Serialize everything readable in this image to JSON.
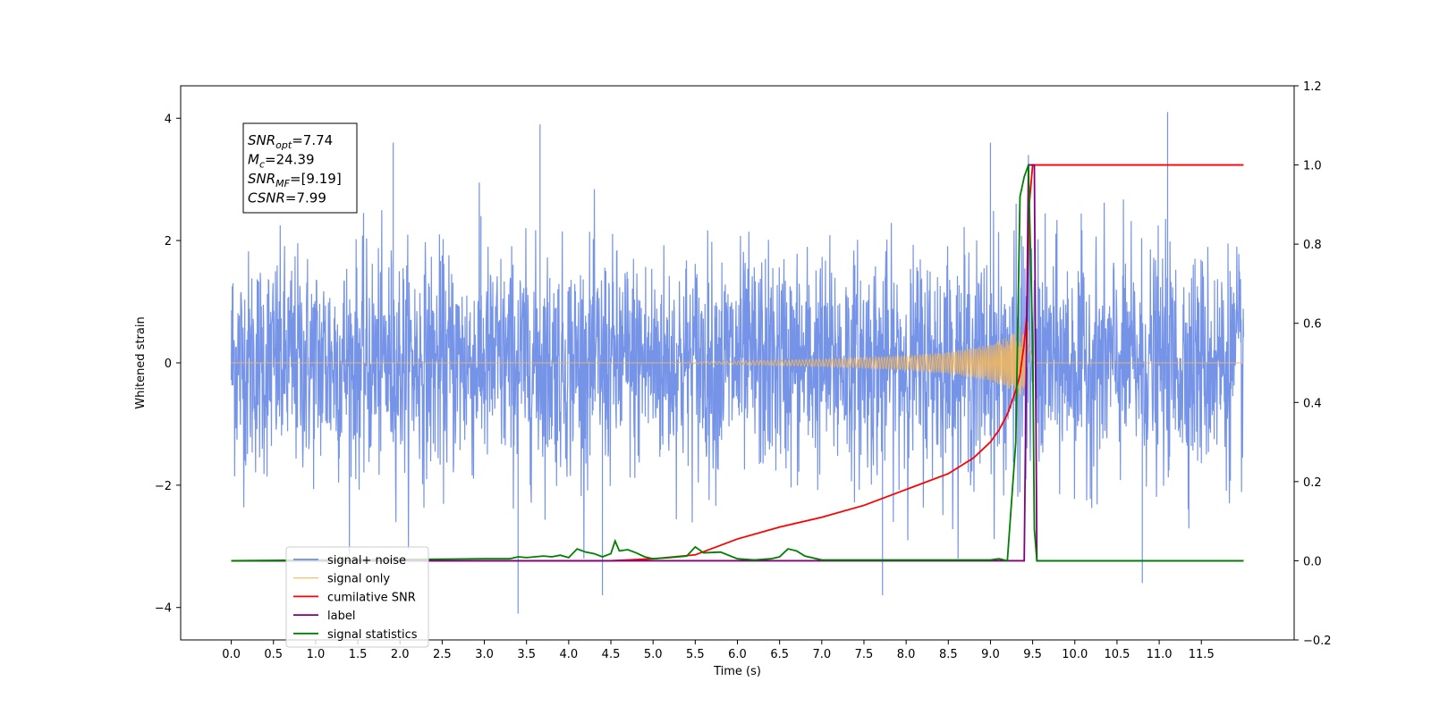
{
  "chart_data": {
    "type": "line",
    "xlabel": "Time (s)",
    "ylabel": "Whitened strain",
    "xlim": [
      -0.6,
      12.6
    ],
    "ylim": [
      -4.53,
      4.53
    ],
    "y2lim": [
      -0.2,
      1.2
    ],
    "x_ticks": [
      "0.0",
      "0.5",
      "1.0",
      "1.5",
      "2.0",
      "2.5",
      "3.0",
      "3.5",
      "4.0",
      "4.5",
      "5.0",
      "5.5",
      "6.0",
      "6.5",
      "7.0",
      "7.5",
      "8.0",
      "8.5",
      "9.0",
      "9.5",
      "10.0",
      "10.5",
      "11.0",
      "11.5"
    ],
    "y_ticks": [
      "−4",
      "−2",
      "0",
      "2",
      "4"
    ],
    "y2_ticks": [
      "−0.2",
      "0.0",
      "0.2",
      "0.4",
      "0.6",
      "0.8",
      "1.0",
      "1.2"
    ],
    "legend_position": "lower left",
    "colors": {
      "noise": "#6f8ee6",
      "signal": "#f5b75a",
      "snr": "#ff0000",
      "label": "#800080",
      "stats": "#008000"
    },
    "annotation": [
      {
        "name": "SNR",
        "sub": "opt",
        "value": "=7.74"
      },
      {
        "name": "M",
        "sub": "c",
        "value": "=24.39"
      },
      {
        "name": "SNR",
        "sub": "MF",
        "value": "=[9.19]"
      },
      {
        "name": "CSNR",
        "sub": "",
        "value": "=7.99"
      }
    ],
    "series": [
      {
        "name": "signal+ noise",
        "axis": "left",
        "style": "noise",
        "x_range": [
          0.0,
          12.0
        ],
        "typical_amplitude": [
          -2.3,
          2.3
        ],
        "notable_peaks": [
          [
            0.02,
            1.3
          ],
          [
            1.92,
            3.6
          ],
          [
            2.96,
            2.4
          ],
          [
            3.66,
            3.9
          ],
          [
            3.4,
            -4.1
          ],
          [
            11.1,
            4.1
          ],
          [
            10.8,
            -3.6
          ],
          [
            7.72,
            -3.8
          ],
          [
            4.4,
            -3.8
          ],
          [
            9.0,
            3.6
          ],
          [
            9.45,
            3.4
          ]
        ]
      },
      {
        "name": "signal only",
        "axis": "left",
        "style": "chirp",
        "merger_time": 9.45,
        "envelope": [
          [
            5.0,
            0.0
          ],
          [
            6.0,
            0.03
          ],
          [
            7.0,
            0.06
          ],
          [
            8.0,
            0.12
          ],
          [
            8.5,
            0.18
          ],
          [
            9.0,
            0.3
          ],
          [
            9.2,
            0.42
          ],
          [
            9.35,
            0.6
          ],
          [
            9.45,
            0.8
          ],
          [
            9.5,
            0.0
          ]
        ]
      },
      {
        "name": "cumilative SNR",
        "axis": "right",
        "x": [
          0.0,
          4.0,
          4.5,
          5.0,
          5.5,
          6.0,
          6.5,
          7.0,
          7.5,
          8.0,
          8.5,
          8.8,
          9.0,
          9.1,
          9.2,
          9.3,
          9.35,
          9.4,
          9.43,
          9.46,
          9.5,
          9.55,
          12.0
        ],
        "values": [
          0.0,
          0.0,
          0.0,
          0.005,
          0.015,
          0.055,
          0.085,
          0.11,
          0.14,
          0.18,
          0.22,
          0.26,
          0.3,
          0.33,
          0.37,
          0.43,
          0.47,
          0.55,
          0.62,
          0.9,
          1.0,
          1.0,
          1.0
        ]
      },
      {
        "name": "label",
        "axis": "right",
        "x": [
          0.0,
          9.4,
          9.45,
          9.52,
          9.55,
          12.0
        ],
        "values": [
          0.0,
          0.0,
          1.0,
          1.0,
          0.0,
          0.0
        ]
      },
      {
        "name": "signal statistics",
        "axis": "right",
        "x": [
          0.0,
          3.0,
          3.3,
          3.4,
          3.5,
          3.7,
          3.8,
          3.9,
          4.0,
          4.1,
          4.2,
          4.3,
          4.4,
          4.5,
          4.55,
          4.6,
          4.7,
          4.8,
          4.9,
          5.0,
          5.2,
          5.4,
          5.5,
          5.6,
          5.8,
          6.0,
          6.2,
          6.4,
          6.5,
          6.6,
          6.7,
          6.8,
          7.0,
          9.0,
          9.1,
          9.2,
          9.3,
          9.35,
          9.4,
          9.45,
          9.5,
          9.52,
          9.55,
          12.0
        ],
        "values": [
          0.0,
          0.005,
          0.005,
          0.01,
          0.008,
          0.012,
          0.01,
          0.014,
          0.008,
          0.03,
          0.022,
          0.018,
          0.01,
          0.018,
          0.05,
          0.025,
          0.028,
          0.02,
          0.01,
          0.005,
          0.008,
          0.012,
          0.035,
          0.02,
          0.022,
          0.005,
          0.002,
          0.005,
          0.01,
          0.03,
          0.025,
          0.012,
          0.002,
          0.002,
          0.005,
          0.0,
          0.3,
          0.92,
          0.97,
          1.0,
          0.55,
          0.08,
          0.0,
          0.0
        ]
      }
    ]
  }
}
